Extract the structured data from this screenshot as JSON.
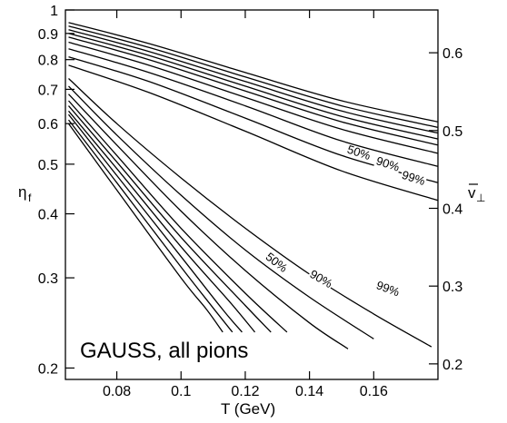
{
  "chart_data": {
    "type": "line",
    "title": "",
    "annotation": "GAUSS,  all pions",
    "xlabel": "T  (GeV)",
    "ylabel_left": "η",
    "ylabel_left_sub": "f",
    "ylabel_right": "v",
    "ylabel_right_sub": "⊥",
    "x_range": [
      0.064,
      0.18
    ],
    "y_left_scale": "log",
    "y_left_range": [
      0.19,
      1.0
    ],
    "y_right_range": [
      0.18,
      0.655
    ],
    "x_ticks": [
      "0.08",
      "0.1",
      "0.12",
      "0.14",
      "0.16"
    ],
    "x_tick_values": [
      0.08,
      0.1,
      0.12,
      0.14,
      0.16
    ],
    "y_left_ticks": [
      "1",
      "0.9",
      "0.8",
      "0.7",
      "0.6",
      "0.5",
      "0.4",
      "0.3",
      "0.2"
    ],
    "y_left_tick_values": [
      1.0,
      0.9,
      0.8,
      0.7,
      0.6,
      0.5,
      0.4,
      0.3,
      0.2
    ],
    "y_right_ticks": [
      "0.6",
      "0.5",
      "0.4",
      "0.3",
      "0.2"
    ],
    "y_right_tick_values": [
      0.6,
      0.5,
      0.4,
      0.3,
      0.2
    ],
    "upper_family": [
      {
        "x": [
          0.065,
          0.09,
          0.12,
          0.15,
          0.18
        ],
        "y": [
          0.945,
          0.86,
          0.755,
          0.665,
          0.605
        ]
      },
      {
        "x": [
          0.065,
          0.09,
          0.12,
          0.15,
          0.18
        ],
        "y": [
          0.93,
          0.845,
          0.74,
          0.65,
          0.59
        ]
      },
      {
        "x": [
          0.065,
          0.09,
          0.12,
          0.15,
          0.18
        ],
        "y": [
          0.915,
          0.83,
          0.725,
          0.635,
          0.575
        ]
      },
      {
        "x": [
          0.065,
          0.09,
          0.12,
          0.15,
          0.18
        ],
        "y": [
          0.9,
          0.815,
          0.71,
          0.62,
          0.56
        ]
      },
      {
        "x": [
          0.065,
          0.09,
          0.12,
          0.15,
          0.18
        ],
        "y": [
          0.885,
          0.8,
          0.695,
          0.605,
          0.545
        ]
      },
      {
        "x": [
          0.065,
          0.09,
          0.12,
          0.15,
          0.18
        ],
        "y": [
          0.865,
          0.78,
          0.675,
          0.585,
          0.525
        ]
      },
      {
        "x": [
          0.065,
          0.09,
          0.12,
          0.15,
          0.18
        ],
        "y": [
          0.84,
          0.755,
          0.65,
          0.555,
          0.495
        ]
      },
      {
        "x": [
          0.065,
          0.09,
          0.12,
          0.15,
          0.18
        ],
        "y": [
          0.81,
          0.725,
          0.615,
          0.52,
          0.46
        ]
      },
      {
        "x": [
          0.065,
          0.09,
          0.12,
          0.15,
          0.18
        ],
        "y": [
          0.78,
          0.69,
          0.58,
          0.485,
          0.425
        ]
      }
    ],
    "lower_family": [
      {
        "x": [
          0.065,
          0.08,
          0.1,
          0.12,
          0.14,
          0.16,
          0.178
        ],
        "y": [
          0.735,
          0.6,
          0.47,
          0.375,
          0.305,
          0.255,
          0.22
        ]
      },
      {
        "x": [
          0.065,
          0.08,
          0.1,
          0.12,
          0.14,
          0.16
        ],
        "y": [
          0.71,
          0.57,
          0.435,
          0.34,
          0.275,
          0.228
        ]
      },
      {
        "x": [
          0.065,
          0.08,
          0.1,
          0.12,
          0.14,
          0.152
        ],
        "y": [
          0.685,
          0.545,
          0.405,
          0.31,
          0.245,
          0.218
        ]
      },
      {
        "x": [
          0.065,
          0.08,
          0.1,
          0.12,
          0.133
        ],
        "y": [
          0.665,
          0.52,
          0.375,
          0.28,
          0.235
        ]
      },
      {
        "x": [
          0.065,
          0.08,
          0.1,
          0.12,
          0.128
        ],
        "y": [
          0.65,
          0.505,
          0.36,
          0.265,
          0.235
        ]
      },
      {
        "x": [
          0.065,
          0.08,
          0.1,
          0.115,
          0.123
        ],
        "y": [
          0.635,
          0.49,
          0.345,
          0.27,
          0.235
        ]
      },
      {
        "x": [
          0.065,
          0.08,
          0.1,
          0.113,
          0.119
        ],
        "y": [
          0.625,
          0.475,
          0.33,
          0.26,
          0.235
        ]
      },
      {
        "x": [
          0.065,
          0.08,
          0.1,
          0.11,
          0.116
        ],
        "y": [
          0.61,
          0.46,
          0.315,
          0.262,
          0.235
        ]
      },
      {
        "x": [
          0.065,
          0.08,
          0.1,
          0.108,
          0.113
        ],
        "y": [
          0.6,
          0.445,
          0.3,
          0.26,
          0.235
        ]
      }
    ],
    "contour_labels": [
      {
        "text": "50%",
        "x": 0.155,
        "y": 0.518,
        "angle": 18
      },
      {
        "text": "90%",
        "x": 0.164,
        "y": 0.492,
        "angle": 18
      },
      {
        "text": "99%",
        "x": 0.172,
        "y": 0.462,
        "angle": 18
      },
      {
        "text": "50%",
        "x": 0.129,
        "y": 0.317,
        "angle": 38
      },
      {
        "text": "90%",
        "x": 0.143,
        "y": 0.294,
        "angle": 30
      },
      {
        "text": "99%",
        "x": 0.164,
        "y": 0.281,
        "angle": 20
      }
    ]
  }
}
